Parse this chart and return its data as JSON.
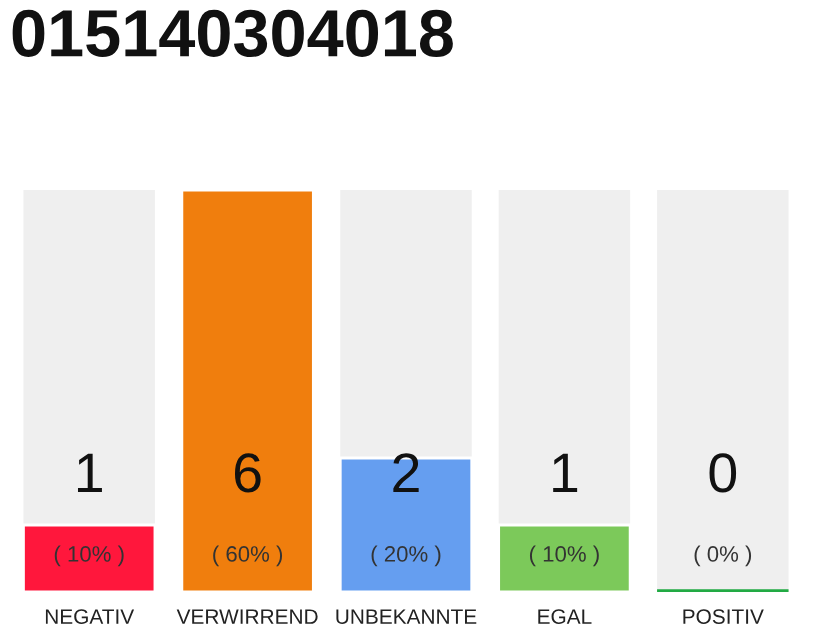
{
  "chart_data": {
    "type": "bar",
    "title": "015140304018",
    "categories": [
      "NEGATIV",
      "VERWIRREND",
      "UNBEKANNTE",
      "EGAL",
      "POSITIV"
    ],
    "values": [
      1,
      6,
      2,
      1,
      0
    ],
    "colors": [
      "#ff173c",
      "#f07e0d",
      "#659ef0",
      "#7cc95a",
      "#22aa44"
    ],
    "ylim": [
      0,
      6
    ],
    "data_labels": true,
    "annotations": [
      "( 10% )",
      "( 60% )",
      "( 20% )",
      "( 10% )",
      "( 0% )"
    ],
    "grid": false,
    "legend": false
  }
}
